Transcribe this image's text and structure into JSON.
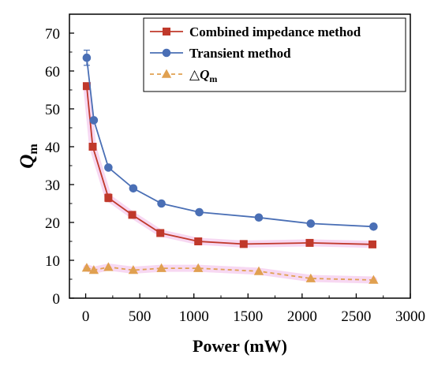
{
  "chart_data": {
    "type": "line",
    "xlabel": "Power (mW)",
    "ylabel": {
      "main": "Q",
      "sub": "m"
    },
    "xlim": [
      -150,
      3000
    ],
    "ylim": [
      0,
      75
    ],
    "xticks": [
      0,
      500,
      1000,
      1500,
      2000,
      2500,
      3000
    ],
    "yticks": [
      0,
      10,
      20,
      30,
      40,
      50,
      60,
      70
    ],
    "legend_position": "top-right",
    "series": [
      {
        "name": "Combined impedance method",
        "color": "#c0392b",
        "marker": "square",
        "dashed": false,
        "halo": true,
        "points": [
          {
            "x": 10,
            "y": 56.0,
            "err": 0.5
          },
          {
            "x": 65,
            "y": 40.0,
            "err": 0.8
          },
          {
            "x": 210,
            "y": 26.5,
            "err": 1.0
          },
          {
            "x": 430,
            "y": 22.0,
            "err": 0.8
          },
          {
            "x": 690,
            "y": 17.2,
            "err": 0.4
          },
          {
            "x": 1040,
            "y": 15.0,
            "err": 0.4
          },
          {
            "x": 1460,
            "y": 14.3,
            "err": 0.3
          },
          {
            "x": 2070,
            "y": 14.6,
            "err": 0.3
          },
          {
            "x": 2650,
            "y": 14.2,
            "err": 0.3
          }
        ]
      },
      {
        "name": "Transient method",
        "color": "#4a6fb5",
        "marker": "circle",
        "dashed": false,
        "halo": false,
        "points": [
          {
            "x": 10,
            "y": 63.5,
            "err": 2.0
          },
          {
            "x": 75,
            "y": 47.0,
            "err": 0.5
          },
          {
            "x": 210,
            "y": 34.5,
            "err": 0.5
          },
          {
            "x": 440,
            "y": 29.0,
            "err": 0.5
          },
          {
            "x": 700,
            "y": 25.0,
            "err": 0.5
          },
          {
            "x": 1050,
            "y": 22.7,
            "err": 0.5
          },
          {
            "x": 1600,
            "y": 21.3,
            "err": 0.3
          },
          {
            "x": 2080,
            "y": 19.7,
            "err": 0.3
          },
          {
            "x": 2660,
            "y": 18.9,
            "err": 0.3
          }
        ]
      },
      {
        "name": {
          "main": "△Q",
          "sub": "m"
        },
        "color": "#e0a050",
        "marker": "triangle",
        "dashed": true,
        "halo": true,
        "points": [
          {
            "x": 10,
            "y": 8.0
          },
          {
            "x": 75,
            "y": 7.4
          },
          {
            "x": 210,
            "y": 8.2
          },
          {
            "x": 440,
            "y": 7.4
          },
          {
            "x": 700,
            "y": 7.9
          },
          {
            "x": 1040,
            "y": 7.9
          },
          {
            "x": 1600,
            "y": 7.1
          },
          {
            "x": 2080,
            "y": 5.2
          },
          {
            "x": 2660,
            "y": 4.8
          }
        ]
      }
    ]
  }
}
